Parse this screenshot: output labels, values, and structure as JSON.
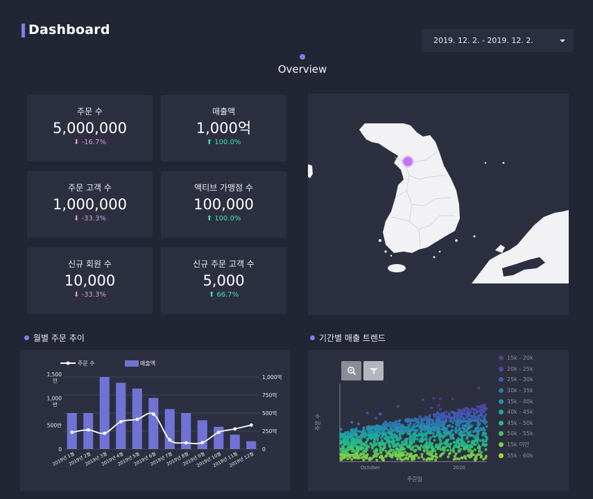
{
  "header": {
    "title": "Dashboard",
    "date_range": "2019. 12. 2. - 2019. 12. 2.",
    "section_title": "Overview"
  },
  "kpis": [
    {
      "label": "주문 수",
      "value": "5,000,000",
      "change": "-16.7%",
      "direction": "down"
    },
    {
      "label": "매출액",
      "value": "1,000억",
      "change": "100.0%",
      "direction": "up"
    },
    {
      "label": "주문 고객 수",
      "value": "1,000,000",
      "change": "-33.3%",
      "direction": "down"
    },
    {
      "label": "액티브 가맹점 수",
      "value": "100,000",
      "change": "100.0%",
      "direction": "up"
    },
    {
      "label": "신규 회원 수",
      "value": "10,000",
      "change": "-33.3%",
      "direction": "down"
    },
    {
      "label": "신규 주문 고객 수",
      "value": "5,000",
      "change": "66.7%",
      "direction": "up"
    }
  ],
  "colors": {
    "accent": "#7c7ff0",
    "background": "#222533",
    "card": "#2c2f3f",
    "down": "#d09ae6",
    "up": "#3ee0b4",
    "bar": "#6f73d6",
    "map_land": "#f2f2f4",
    "map_marker": "#c174f0"
  },
  "map": {
    "marker_label": "Seoul"
  },
  "monthly_chart": {
    "title": "월별 주문 추이",
    "legend_line": "주문 수",
    "legend_bar": "매출액"
  },
  "trend_chart": {
    "title": "기간별 매출 트렌드",
    "zoom_icon": "zoom-icon",
    "filter_icon": "filter-icon"
  },
  "chart_data": [
    {
      "type": "bar",
      "title": "월별 주문 추이",
      "categories": [
        "2019년 1월",
        "2019년 2월",
        "2019년 3월",
        "2019년 4월",
        "2019년 5월",
        "2019년 6월",
        "2019년 7월",
        "2019년 8월",
        "2019년 9월",
        "2019년 10월",
        "2019년 11월",
        "2019년 12월"
      ],
      "series": [
        {
          "name": "매출액",
          "type": "bar",
          "axis": "right",
          "values": [
            500,
            500,
            1000,
            920,
            840,
            710,
            555,
            500,
            400,
            310,
            200,
            110
          ]
        },
        {
          "name": "주문 수",
          "type": "line",
          "axis": "left",
          "values": [
            350,
            400,
            330,
            570,
            620,
            730,
            190,
            130,
            135,
            350,
            420,
            500
          ]
        }
      ],
      "y_left": {
        "ticks": [
          0,
          500,
          1000,
          1500
        ],
        "tick_labels": [
          "0",
          "500만",
          "1,000만",
          "1,500만"
        ],
        "ylim": [
          0,
          1500
        ]
      },
      "y_right": {
        "ticks": [
          0,
          250,
          500,
          750,
          1000
        ],
        "tick_labels": [
          "0",
          "250억",
          "500억",
          "750억",
          "1,000억"
        ],
        "ylim": [
          0,
          1000
        ]
      },
      "grid": true,
      "legend": "top-left"
    },
    {
      "type": "scatter",
      "title": "기간별 매출 트렌드",
      "xlabel": "주문일",
      "ylabel": "주문 수",
      "x_tick_labels": [
        "October",
        "2020"
      ],
      "x_range": [
        "2019-09",
        "2020-02"
      ],
      "legend_entries": [
        {
          "label": "15k - 20k",
          "color": "#5b3b8f"
        },
        {
          "label": "20k - 25k",
          "color": "#4a49a6"
        },
        {
          "label": "25k - 30k",
          "color": "#3e5bb0"
        },
        {
          "label": "30k - 35k",
          "color": "#2f76b2"
        },
        {
          "label": "35k - 40k",
          "color": "#2590ad"
        },
        {
          "label": "40k - 45k",
          "color": "#1fa69f"
        },
        {
          "label": "45k - 50k",
          "color": "#24b88a"
        },
        {
          "label": "50k - 55k",
          "color": "#45c46a"
        },
        {
          "label": "15k 미만",
          "color": "#7ccf4d"
        },
        {
          "label": "55k - 60k",
          "color": "#a6d63f"
        }
      ],
      "legend": "right"
    }
  ]
}
